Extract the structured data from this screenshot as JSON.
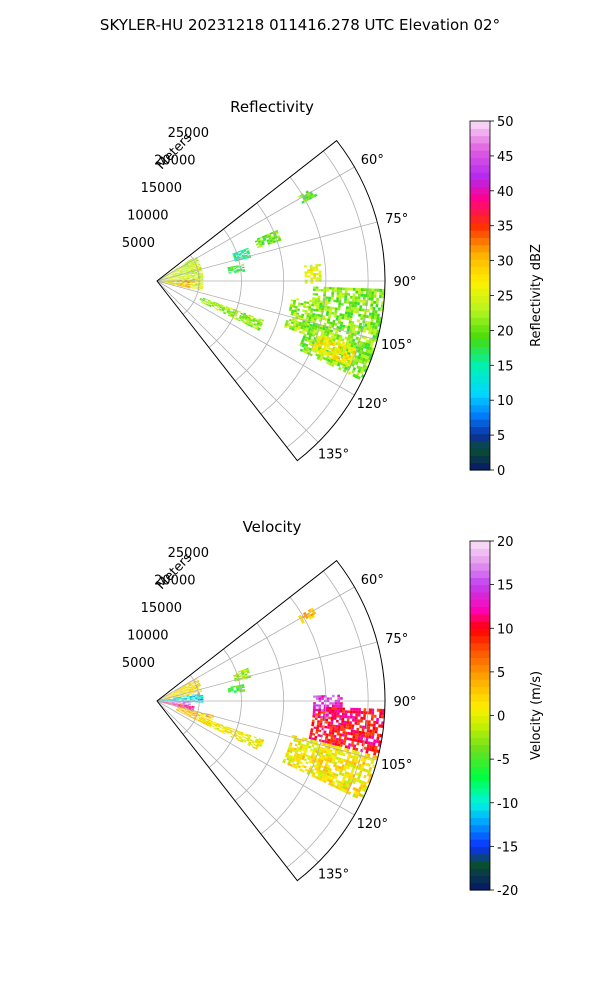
{
  "figure": {
    "title": "SKYLER-HU  20231218  011416.278 UTC Elevation 02°"
  },
  "colors": {
    "grid": "#b0b0b0",
    "axis": "#000000",
    "text": "#000000"
  },
  "chart_data": [
    {
      "type": "heatmap",
      "subtype": "polar-sector (PPI radar scan)",
      "title": "Reflectivity",
      "radial_label": "Meters",
      "radial_ticks": [
        5000,
        10000,
        15000,
        20000,
        25000
      ],
      "angle_ticks_deg": [
        60,
        75,
        90,
        105,
        120,
        135
      ],
      "angle_tick_labels": [
        "60°",
        "75°",
        "90°",
        "105°",
        "120°",
        "135°"
      ],
      "theta_range_deg": [
        52,
        142
      ],
      "r_max": 27000,
      "grid": true,
      "colorbar": {
        "label": "Reflectivity dBZ",
        "range": [
          0,
          50
        ],
        "ticks": [
          0,
          5,
          10,
          15,
          20,
          25,
          30,
          35,
          40,
          45,
          50
        ],
        "colormap": [
          [
            0,
            "#06166a"
          ],
          [
            3,
            "#0a5030"
          ],
          [
            5,
            "#0a2fa0"
          ],
          [
            8,
            "#0080ff"
          ],
          [
            11,
            "#00d8ff"
          ],
          [
            15,
            "#00f2b0"
          ],
          [
            19,
            "#45dc0a"
          ],
          [
            23,
            "#b8f520"
          ],
          [
            27,
            "#fff000"
          ],
          [
            31,
            "#ffb000"
          ],
          [
            35,
            "#ff3000"
          ],
          [
            39,
            "#ff0090"
          ],
          [
            42,
            "#b428f0"
          ],
          [
            46,
            "#e060e0"
          ],
          [
            50,
            "#fbe2f8"
          ]
        ]
      },
      "echoes": [
        {
          "az": [
            57,
            102
          ],
          "r": [
            0,
            5500
          ],
          "dbz": 24
        },
        {
          "az": [
            88,
            93
          ],
          "r": [
            500,
            4500
          ],
          "dbz": 32
        },
        {
          "az": [
            96,
            103
          ],
          "r": [
            500,
            4000
          ],
          "dbz": 30
        },
        {
          "az": [
            59,
            62
          ],
          "r": [
            19500,
            21500
          ],
          "dbz": 20
        },
        {
          "az": [
            67,
            72
          ],
          "r": [
            12500,
            15500
          ],
          "dbz": 20
        },
        {
          "az": [
            70,
            76
          ],
          "r": [
            9500,
            11500
          ],
          "dbz": 16
        },
        {
          "az": [
            79,
            84
          ],
          "r": [
            8500,
            10500
          ],
          "dbz": 18
        },
        {
          "az": [
            110,
            116
          ],
          "r": [
            5500,
            13500
          ],
          "dbz": 22
        },
        {
          "az": [
            97,
            110
          ],
          "r": [
            16000,
            18500
          ],
          "dbz": 22
        },
        {
          "az": [
            92,
            116
          ],
          "r": [
            18500,
            27000
          ],
          "dbz": 21
        },
        {
          "az": [
            108,
            114
          ],
          "r": [
            20000,
            25000
          ],
          "dbz": 27
        },
        {
          "az": [
            84,
            91
          ],
          "r": [
            17500,
            19500
          ],
          "dbz": 26
        }
      ]
    },
    {
      "type": "heatmap",
      "subtype": "polar-sector (PPI radar scan)",
      "title": "Velocity",
      "radial_label": "Meters",
      "radial_ticks": [
        5000,
        10000,
        15000,
        20000,
        25000
      ],
      "angle_ticks_deg": [
        60,
        75,
        90,
        105,
        120,
        135
      ],
      "angle_tick_labels": [
        "60°",
        "75°",
        "90°",
        "105°",
        "120°",
        "135°"
      ],
      "theta_range_deg": [
        52,
        142
      ],
      "r_max": 27000,
      "grid": true,
      "colorbar": {
        "label": "Velocity (m/s)",
        "range": [
          -20,
          20
        ],
        "ticks": [
          -20,
          -15,
          -10,
          -5,
          0,
          5,
          10,
          15,
          20
        ],
        "colormap": [
          [
            -20,
            "#06166a"
          ],
          [
            -17,
            "#0a5030"
          ],
          [
            -15,
            "#0a30ff"
          ],
          [
            -12,
            "#00aaff"
          ],
          [
            -10,
            "#00f5e0"
          ],
          [
            -7,
            "#00ff40"
          ],
          [
            -4,
            "#66e020"
          ],
          [
            -1,
            "#c8f000"
          ],
          [
            1,
            "#ffee00"
          ],
          [
            4,
            "#ffb000"
          ],
          [
            7,
            "#ff6000"
          ],
          [
            10,
            "#ff0000"
          ],
          [
            12,
            "#ff00b0"
          ],
          [
            15,
            "#c040f0"
          ],
          [
            18,
            "#e8a8ee"
          ],
          [
            20,
            "#fbe2f8"
          ]
        ]
      },
      "echoes": [
        {
          "az": [
            60,
            80
          ],
          "r": [
            0,
            5500
          ],
          "vel": 2
        },
        {
          "az": [
            80,
            92
          ],
          "r": [
            0,
            5500
          ],
          "vel": -11
        },
        {
          "az": [
            92,
            98
          ],
          "r": [
            0,
            4000
          ],
          "vel": 17
        },
        {
          "az": [
            98,
            106
          ],
          "r": [
            0,
            4500
          ],
          "vel": 11
        },
        {
          "az": [
            104,
            116
          ],
          "r": [
            2500,
            7000
          ],
          "vel": 3
        },
        {
          "az": [
            59,
            62
          ],
          "r": [
            19500,
            21500
          ],
          "vel": 3
        },
        {
          "az": [
            70,
            76
          ],
          "r": [
            9500,
            11500
          ],
          "vel": -2
        },
        {
          "az": [
            79,
            84
          ],
          "r": [
            8500,
            10500
          ],
          "vel": -5
        },
        {
          "az": [
            110,
            116
          ],
          "r": [
            5500,
            13500
          ],
          "vel": 1
        },
        {
          "az": [
            88,
            96
          ],
          "r": [
            18500,
            22000
          ],
          "vel": 14
        },
        {
          "az": [
            92,
            104
          ],
          "r": [
            18500,
            27000
          ],
          "vel": 10
        },
        {
          "az": [
            104,
            116
          ],
          "r": [
            16500,
            27000
          ],
          "vel": 1
        }
      ]
    }
  ]
}
